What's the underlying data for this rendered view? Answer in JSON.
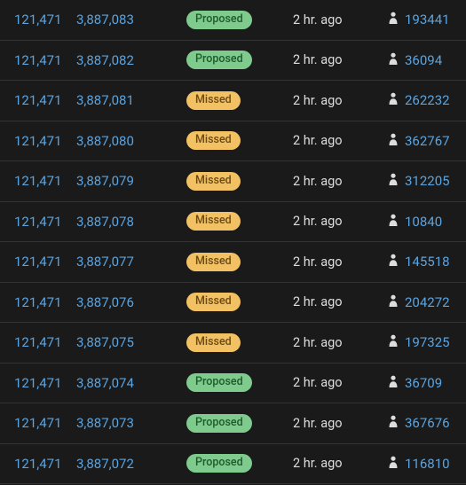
{
  "colors": {
    "background": "#1a1a1a",
    "link": "#5ba4e0",
    "border": "#333333",
    "text": "#dddddd",
    "badge_proposed_bg": "#7fcb8e",
    "badge_proposed_fg": "#1f5a2c",
    "badge_missed_bg": "#f2c164",
    "badge_missed_fg": "#6b4a15"
  },
  "status_labels": {
    "proposed": "Proposed",
    "missed": "Missed"
  },
  "rows": [
    {
      "epoch": "121,471",
      "slot": "3,887,083",
      "status": "proposed",
      "time": "2 hr. ago",
      "proposer": "193441"
    },
    {
      "epoch": "121,471",
      "slot": "3,887,082",
      "status": "proposed",
      "time": "2 hr. ago",
      "proposer": "36094"
    },
    {
      "epoch": "121,471",
      "slot": "3,887,081",
      "status": "missed",
      "time": "2 hr. ago",
      "proposer": "262232"
    },
    {
      "epoch": "121,471",
      "slot": "3,887,080",
      "status": "missed",
      "time": "2 hr. ago",
      "proposer": "362767"
    },
    {
      "epoch": "121,471",
      "slot": "3,887,079",
      "status": "missed",
      "time": "2 hr. ago",
      "proposer": "312205"
    },
    {
      "epoch": "121,471",
      "slot": "3,887,078",
      "status": "missed",
      "time": "2 hr. ago",
      "proposer": "10840"
    },
    {
      "epoch": "121,471",
      "slot": "3,887,077",
      "status": "missed",
      "time": "2 hr. ago",
      "proposer": "145518"
    },
    {
      "epoch": "121,471",
      "slot": "3,887,076",
      "status": "missed",
      "time": "2 hr. ago",
      "proposer": "204272"
    },
    {
      "epoch": "121,471",
      "slot": "3,887,075",
      "status": "missed",
      "time": "2 hr. ago",
      "proposer": "197325"
    },
    {
      "epoch": "121,471",
      "slot": "3,887,074",
      "status": "proposed",
      "time": "2 hr. ago",
      "proposer": "36709"
    },
    {
      "epoch": "121,471",
      "slot": "3,887,073",
      "status": "proposed",
      "time": "2 hr. ago",
      "proposer": "367676"
    },
    {
      "epoch": "121,471",
      "slot": "3,887,072",
      "status": "proposed",
      "time": "2 hr. ago",
      "proposer": "116810"
    }
  ]
}
